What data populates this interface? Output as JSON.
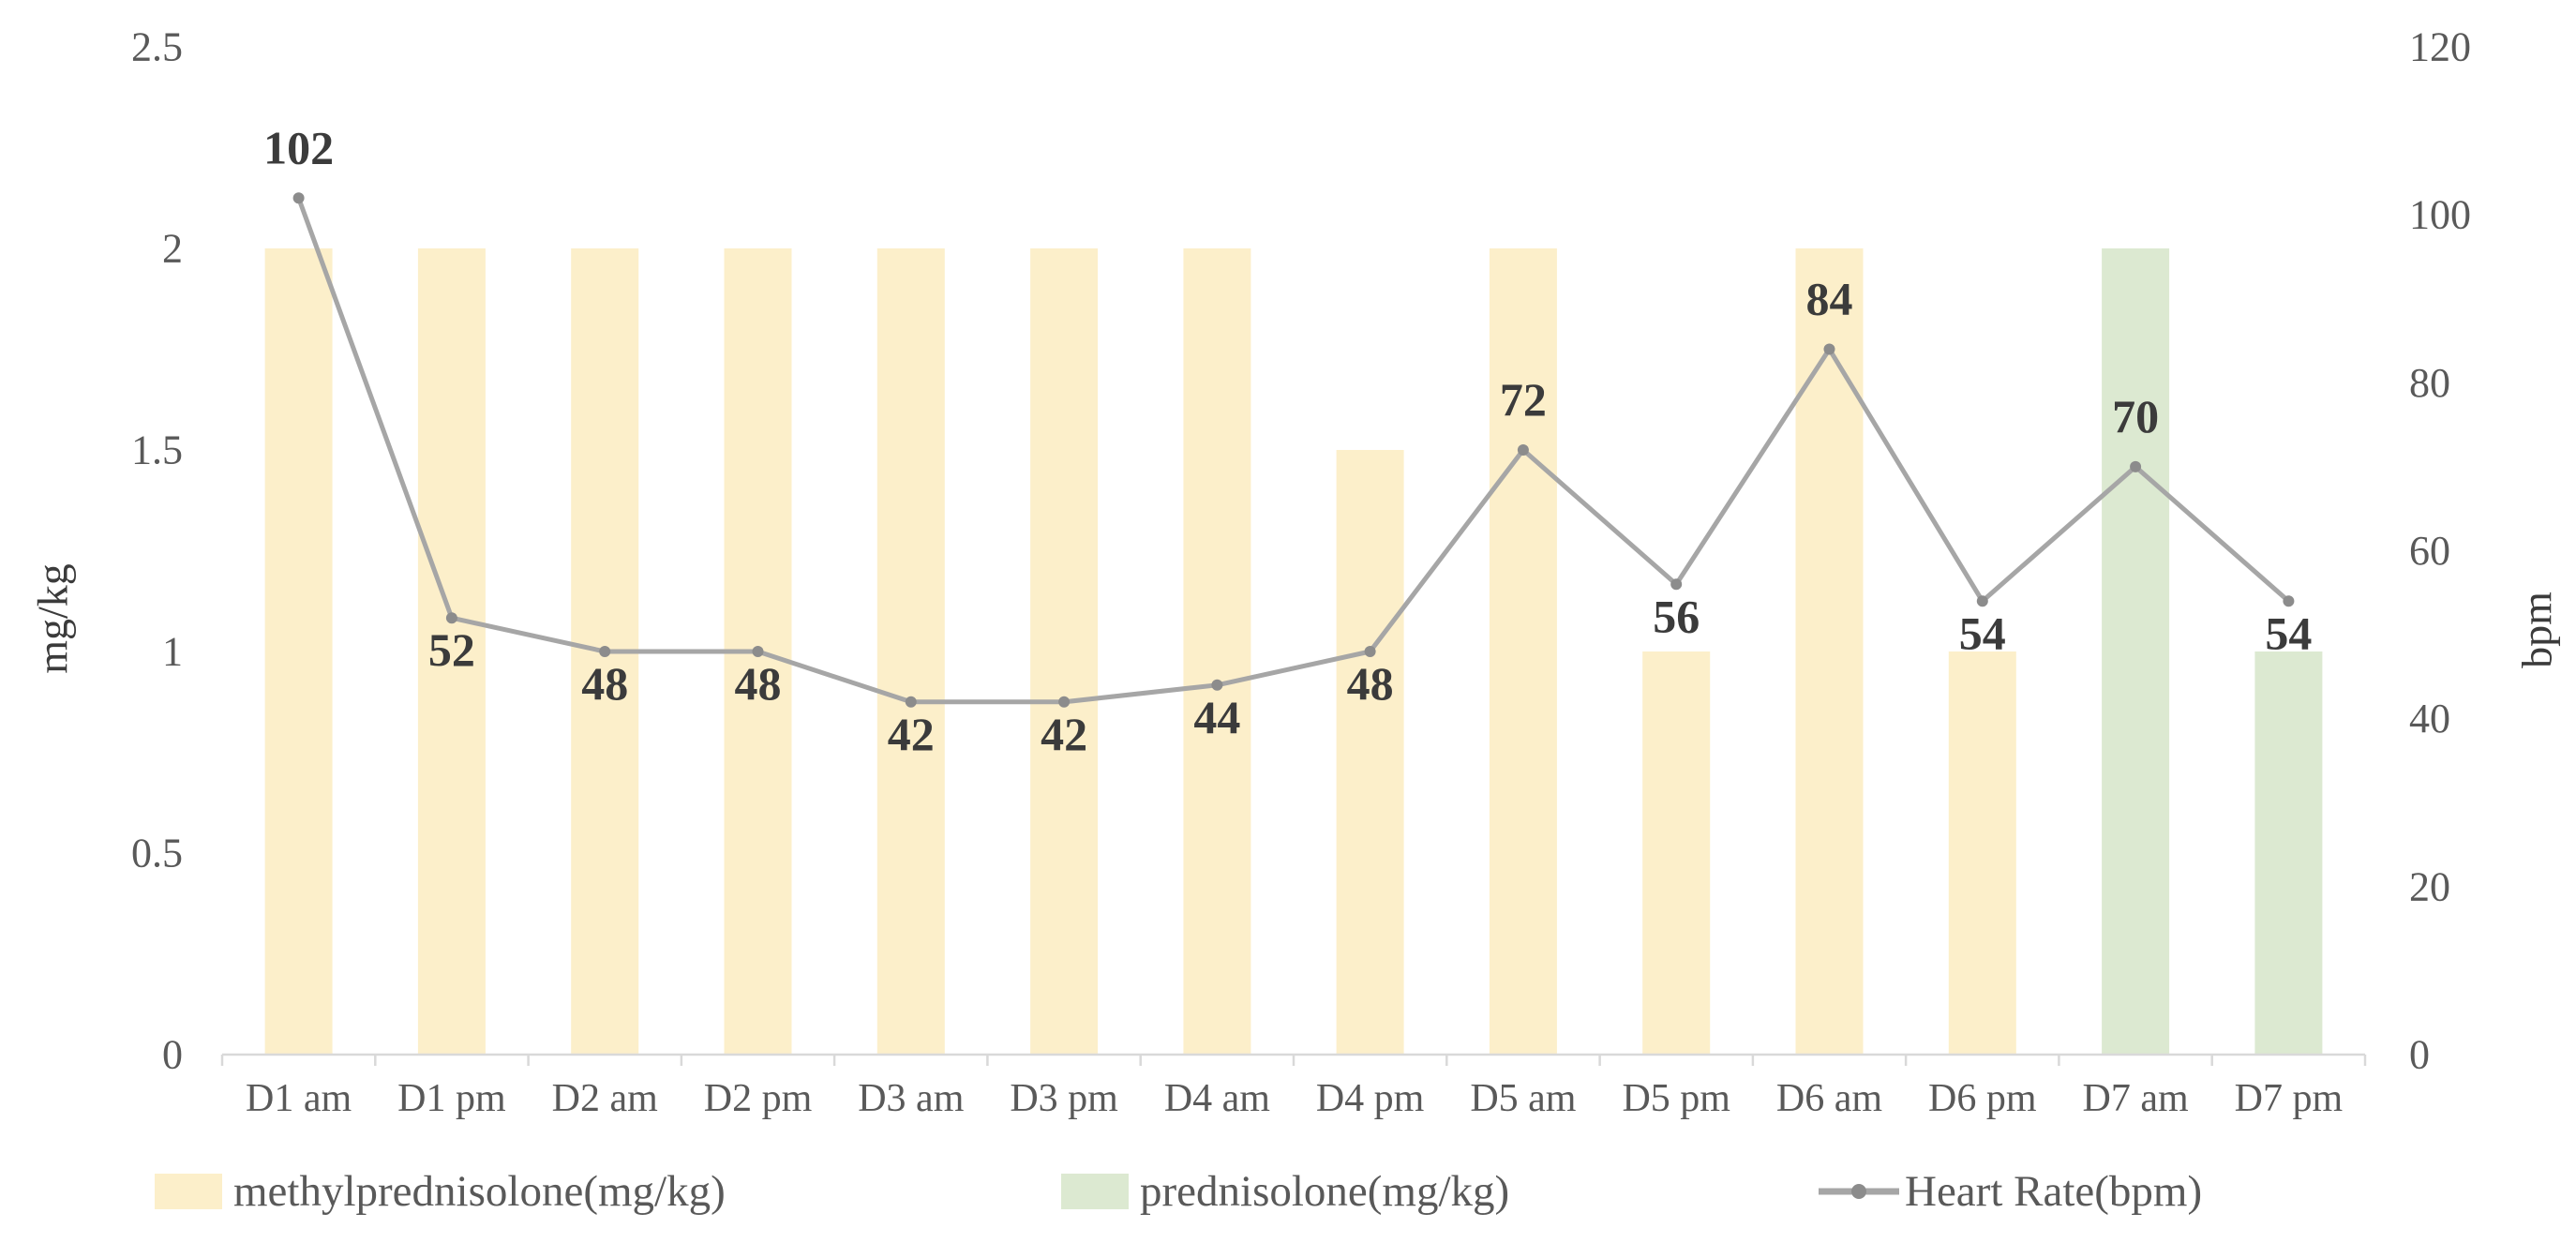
{
  "chart_data": {
    "type": "combo-bar-line",
    "title": "",
    "categories": [
      "D1 am",
      "D1 pm",
      "D2 am",
      "D2 pm",
      "D3 am",
      "D3 pm",
      "D4 am",
      "D4 pm",
      "D5 am",
      "D5 pm",
      "D6 am",
      "D6 pm",
      "D7 am",
      "D7 pm"
    ],
    "series": [
      {
        "name": "methylprednisolone(mg/kg)",
        "type": "bar",
        "axis": "left",
        "color": "#FCEFCA",
        "values": [
          2,
          2,
          2,
          2,
          2,
          2,
          2,
          1.5,
          2,
          1,
          2,
          1,
          null,
          null
        ]
      },
      {
        "name": "prednisolone(mg/kg)",
        "type": "bar",
        "axis": "left",
        "color": "#DCE9D1",
        "values": [
          null,
          null,
          null,
          null,
          null,
          null,
          null,
          null,
          null,
          null,
          null,
          null,
          2,
          1
        ]
      },
      {
        "name": "Heart Rate(bpm)",
        "type": "line",
        "axis": "right",
        "color": "#A6A6A6",
        "marker_color": "#8C8C8C",
        "values": [
          102,
          52,
          48,
          48,
          42,
          42,
          44,
          48,
          72,
          56,
          84,
          54,
          70,
          54
        ],
        "data_labels": [
          "102",
          "52",
          "48",
          "48",
          "42",
          "42",
          "44",
          "48",
          "72",
          "56",
          "84",
          "54",
          "70",
          "54"
        ],
        "label_placement": [
          "above",
          "below",
          "below",
          "below",
          "below",
          "below",
          "below",
          "below",
          "above",
          "below",
          "above",
          "below",
          "above",
          "below"
        ]
      }
    ],
    "left_axis": {
      "title": "mg/kg",
      "min": 0,
      "max": 2.5,
      "tick_interval": 0.5,
      "tick_labels": [
        "2.5",
        "2",
        "1.5",
        "1",
        "0.5",
        "0"
      ]
    },
    "right_axis": {
      "title": "bpm",
      "min": 0,
      "max": 120,
      "tick_interval": 20,
      "tick_labels": [
        "120",
        "100",
        "80",
        "60",
        "40",
        "20",
        "0"
      ]
    },
    "grid": false,
    "legend_position": "bottom"
  },
  "colors": {
    "background": "#FFFFFF",
    "axis_line": "#D9D9D9",
    "axis_text": "#595959",
    "data_label_text": "#3B3B3B",
    "legend_text": "#595959"
  }
}
